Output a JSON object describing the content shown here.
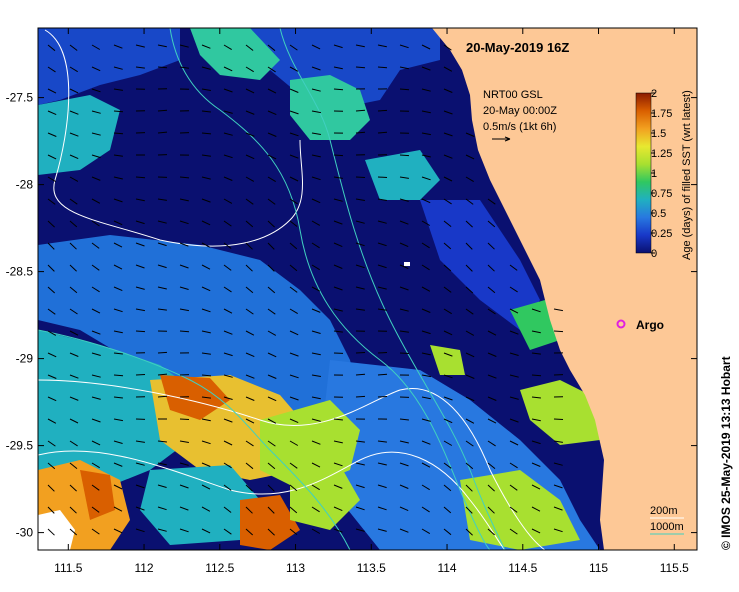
{
  "title": "20-May-2019 16Z",
  "current_info": {
    "product": "NRT00 GSL",
    "time": "20-May 00:00Z",
    "scale": "0.5m/s (1kt 6h)"
  },
  "colorbar": {
    "label": "Age (days) of filled SST (wrt latest)",
    "ticks": [
      "2",
      "1.75",
      "1.5",
      "1.25",
      "1",
      "0.75",
      "0.5",
      "0.25",
      "0"
    ],
    "colors": [
      "#8b1a00",
      "#d95f00",
      "#f2a020",
      "#e8e830",
      "#a8e030",
      "#30c860",
      "#20b0c0",
      "#2878e0",
      "#1838c8",
      "#0a1070"
    ]
  },
  "argo_label": "Argo",
  "argo_color": "#e020e0",
  "land_color": "#fdc896",
  "depth_legend": [
    "200m",
    "1000m"
  ],
  "depth_legend_colors": [
    "#ffffff",
    "#40d0c0"
  ],
  "credit": "© IMOS 25-May-2019 13:13 Hobart",
  "axes": {
    "x_ticks": [
      "111.5",
      "112",
      "112.5",
      "113",
      "113.5",
      "114",
      "114.5",
      "115",
      "115.5"
    ],
    "y_ticks": [
      "-27.5",
      "-28",
      "-28.5",
      "-29",
      "-29.5",
      "-30"
    ]
  },
  "chart_data": {
    "type": "heatmap",
    "title": "20-May-2019 16Z",
    "xlabel": "",
    "ylabel": "",
    "xlim": [
      111.3,
      115.65
    ],
    "ylim": [
      -30.1,
      -27.1
    ],
    "x_ticks": [
      111.5,
      112,
      112.5,
      113,
      113.5,
      114,
      114.5,
      115,
      115.5
    ],
    "y_ticks": [
      -27.5,
      -28,
      -28.5,
      -29,
      -29.5,
      -30
    ],
    "colorbar_range": [
      0,
      2
    ],
    "argo_position": [
      115.12,
      -28.89
    ]
  }
}
